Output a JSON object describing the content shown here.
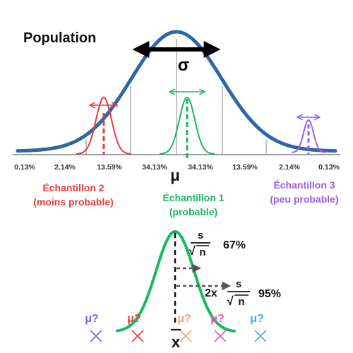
{
  "population": {
    "title": "Population",
    "sigma_label": "σ",
    "mu_label": "μ",
    "percentages": [
      "0.13%",
      "2.14%",
      "13.59%",
      "34.13%",
      "34.13%",
      "13.59%",
      "2.14%",
      "0.13%"
    ]
  },
  "samples": [
    {
      "name": "Échantillon 2",
      "note": "(moins probable)",
      "color": "#e8393c"
    },
    {
      "name": "Échantillon 1",
      "note": "(probable)",
      "color": "#1bb75f"
    },
    {
      "name": "Échantillon 3",
      "note": "(peu probable)",
      "color": "#9b5cf0"
    }
  ],
  "sampling": {
    "xbar_label": "x",
    "interval_1": {
      "multiplier": "",
      "numerator": "s",
      "radicand": "n",
      "root": "√",
      "percent": "67%"
    },
    "interval_2": {
      "multiplier": "2x",
      "numerator": "s",
      "radicand": "n",
      "root": "√",
      "percent": "95%"
    },
    "mu_guesses": [
      {
        "label": "μ?",
        "color": "#8f5ae8"
      },
      {
        "label": "μ?",
        "color": "#e8393c"
      },
      {
        "label": "μ?",
        "color": "#f2a578"
      },
      {
        "label": "μ?",
        "color": "#ee55b8"
      },
      {
        "label": "μ?",
        "color": "#3daee9"
      }
    ]
  },
  "colors": {
    "population_curve": "#2e66a6",
    "sampling_curve": "#1bb75f",
    "axis": "#7f7f7f",
    "text": "#111111",
    "arrow_gray": "#555555"
  }
}
